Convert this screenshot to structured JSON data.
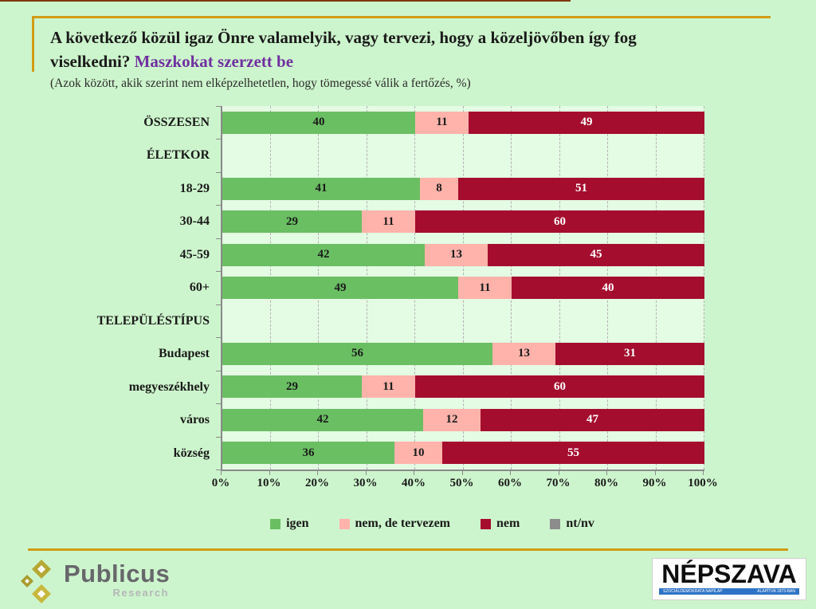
{
  "page": {
    "background": "#cdf5cd",
    "accent_color": "#d19c13"
  },
  "header": {
    "title_line1": "A következő közül igaz Önre valamelyik, vagy tervezi, hogy a közeljövőben így fog",
    "title_line2": "viselkedni? ",
    "title_highlight": "Maszkokat szerzett be",
    "highlight_color": "#7030a0",
    "subtitle": "(Azok között, akik szerint nem elképzelhetetlen, hogy tömegessé válik a fertőzés, %)"
  },
  "chart_data": {
    "type": "bar",
    "stacked": true,
    "orientation": "horizontal",
    "xlim": [
      0,
      100
    ],
    "x_ticks": [
      "0%",
      "10%",
      "20%",
      "30%",
      "40%",
      "50%",
      "60%",
      "70%",
      "80%",
      "90%",
      "100%"
    ],
    "grid": "dashed-vertical",
    "legend_position": "bottom",
    "plot_background": "#e4fbe4",
    "series": [
      {
        "name": "igen",
        "color": "#6abf63",
        "text_color": "#1a1a1a"
      },
      {
        "name": "nem, de tervezem",
        "color": "#ffb3ab",
        "text_color": "#1a1a1a"
      },
      {
        "name": "nem",
        "color": "#a50d2e",
        "text_color": "#ffffff"
      },
      {
        "name": "nt/nv",
        "color": "#8c8c8c",
        "text_color": "#ffffff"
      }
    ],
    "rows": [
      {
        "label": "ÖSSZESEN",
        "type": "data",
        "values": [
          40,
          11,
          49,
          0
        ]
      },
      {
        "label": "ÉLETKOR",
        "type": "header",
        "values": null
      },
      {
        "label": "18-29",
        "type": "data",
        "values": [
          41,
          8,
          51,
          0
        ]
      },
      {
        "label": "30-44",
        "type": "data",
        "values": [
          29,
          11,
          60,
          0
        ]
      },
      {
        "label": "45-59",
        "type": "data",
        "values": [
          42,
          13,
          45,
          0
        ]
      },
      {
        "label": "60+",
        "type": "data",
        "values": [
          49,
          11,
          40,
          0
        ]
      },
      {
        "label": "TELEPÜLÉSTÍPUS",
        "type": "header",
        "values": null
      },
      {
        "label": "Budapest",
        "type": "data",
        "values": [
          56,
          13,
          31,
          0
        ]
      },
      {
        "label": "megyeszékhely",
        "type": "data",
        "values": [
          29,
          11,
          60,
          0
        ]
      },
      {
        "label": "város",
        "type": "data",
        "values": [
          42,
          12,
          47,
          0
        ]
      },
      {
        "label": "község",
        "type": "data",
        "values": [
          36,
          10,
          55,
          0
        ]
      }
    ]
  },
  "footer": {
    "publicus_name": "Publicus",
    "publicus_sub": "Research",
    "nepszava_name": "NÉPSZAVA",
    "nepszava_tagline_left": "SZOCIÁLDEMOKRATA NAPILAP",
    "nepszava_tagline_right": "ALAPÍTVA 1873-BAN"
  }
}
